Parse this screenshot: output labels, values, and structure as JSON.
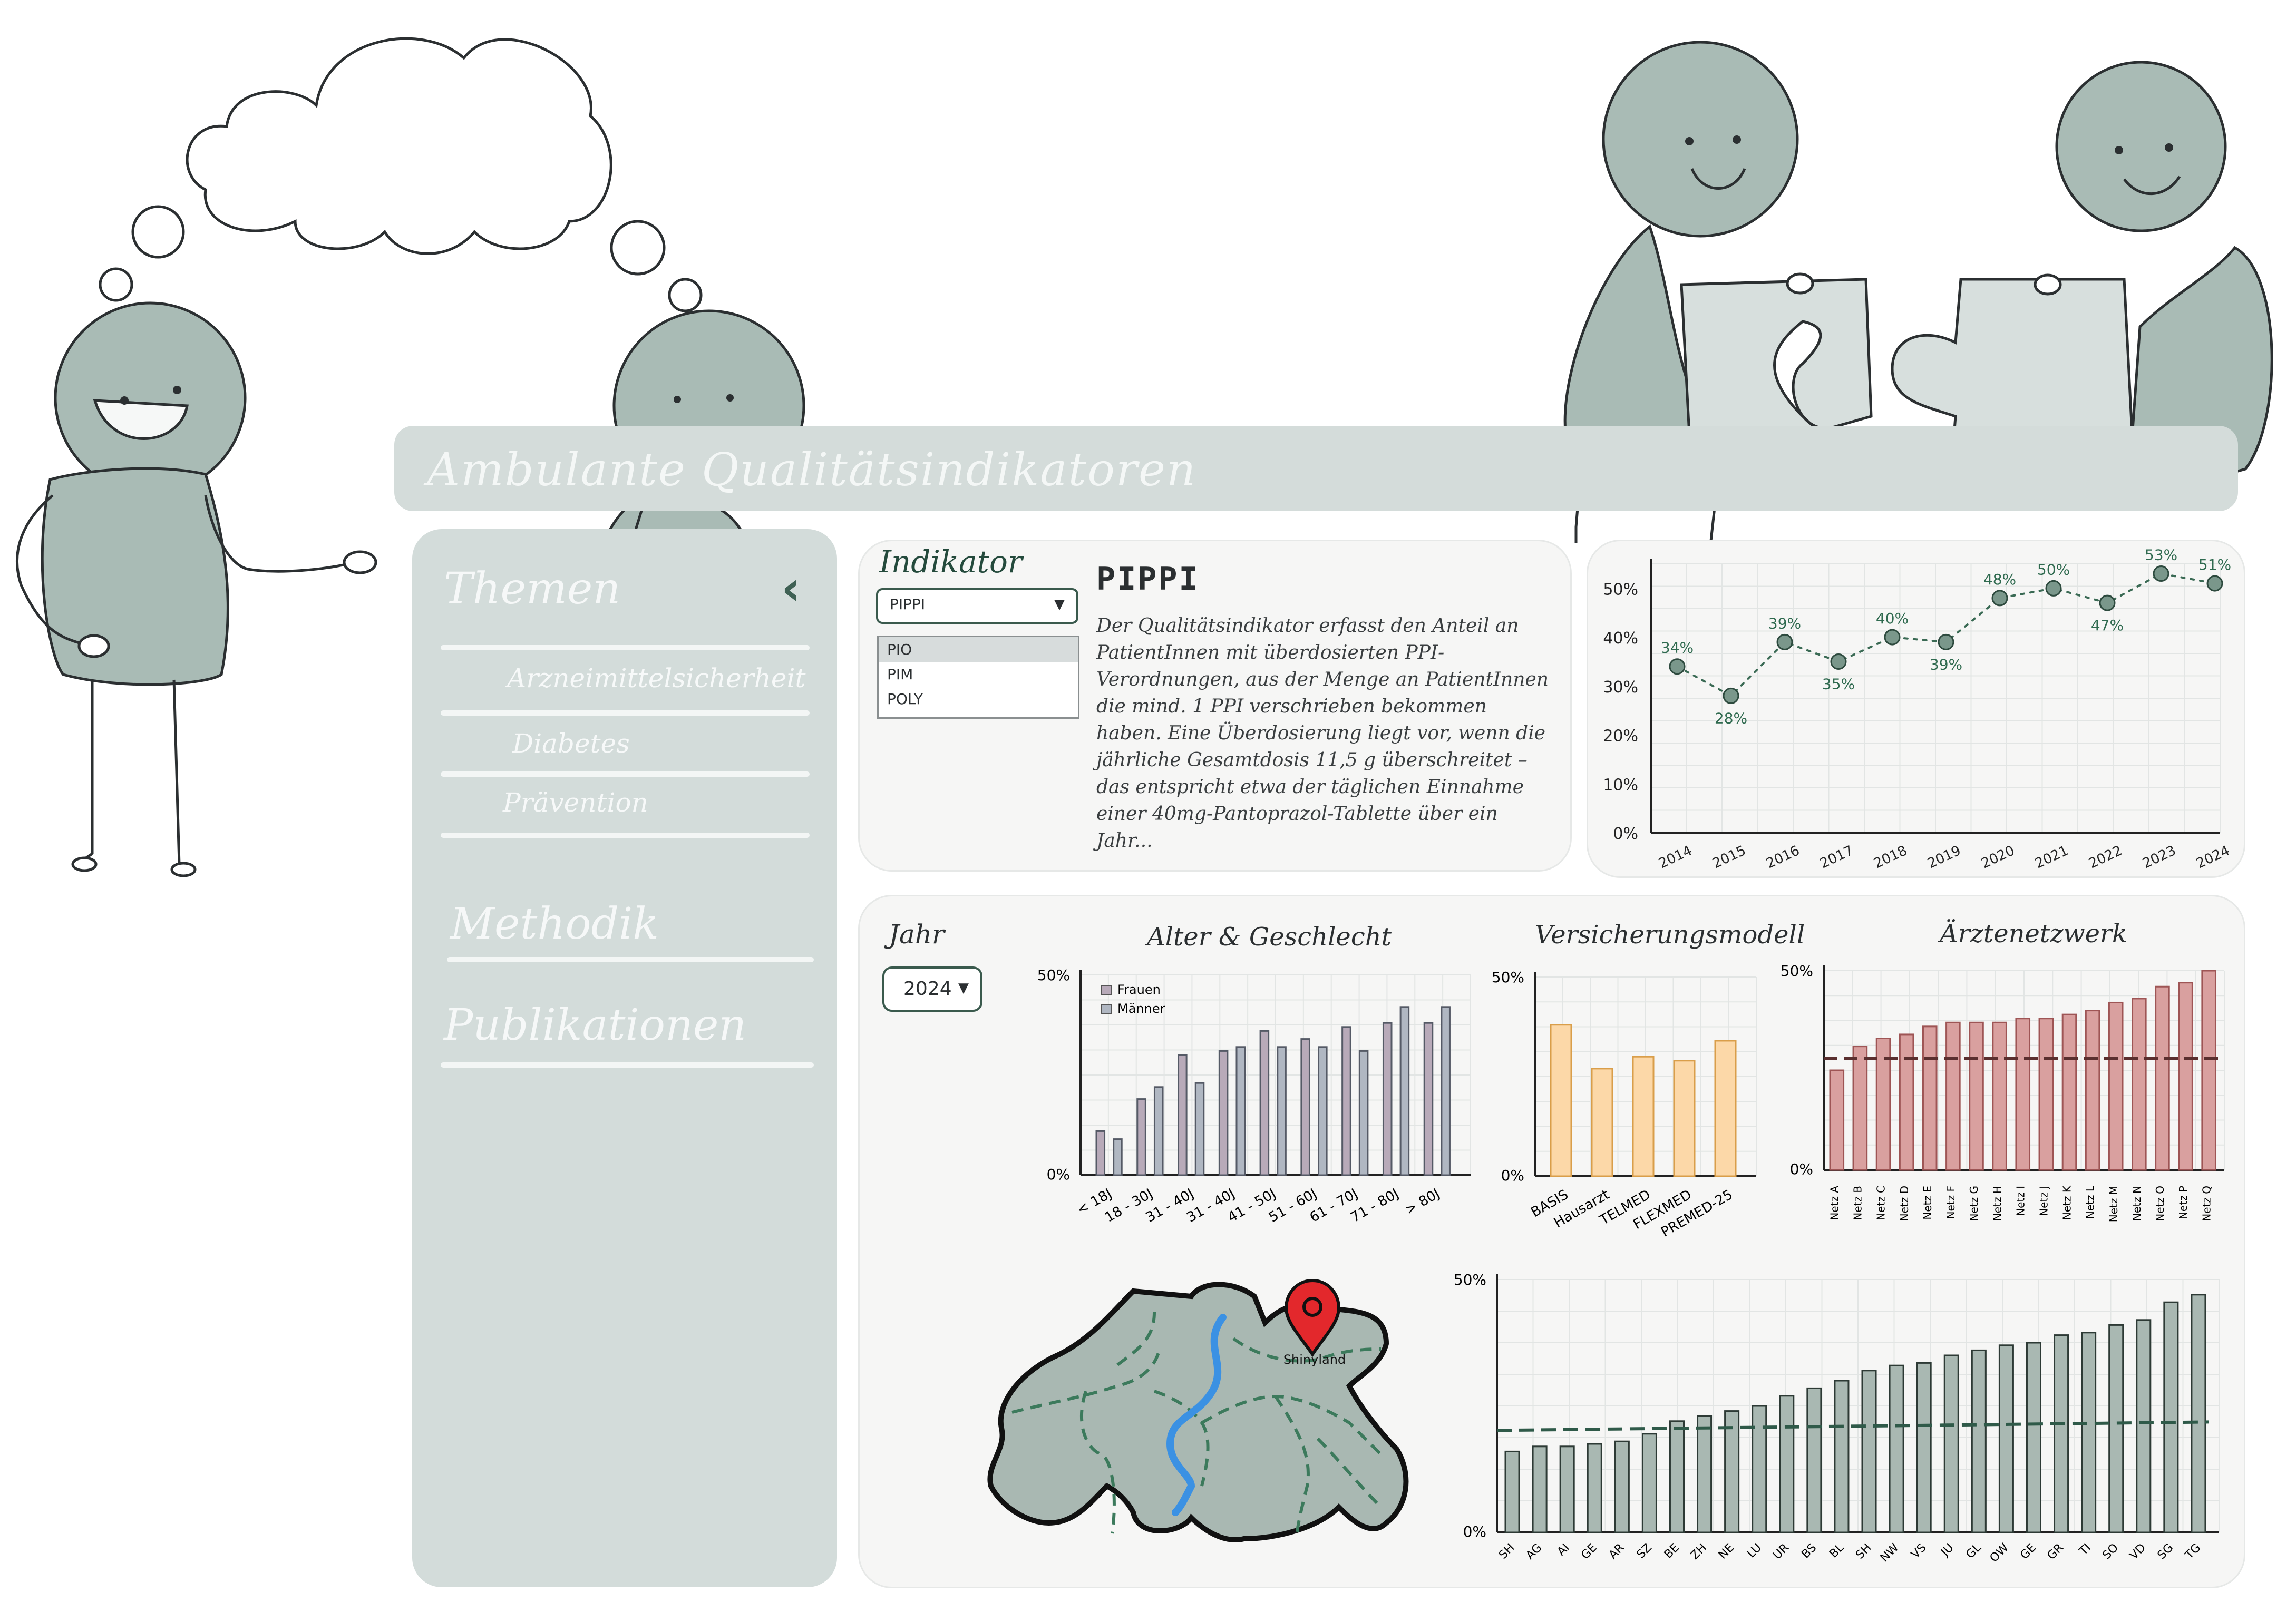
{
  "app_title": "Ambulante Qualitätsindikatoren",
  "sidebar": {
    "themen": "Themen",
    "items": [
      "Arzneimittelsicherheit",
      "Diabetes",
      "Prävention"
    ],
    "methodik": "Methodik",
    "publikationen": "Publikationen",
    "collapse_icon": "chevron-left-icon"
  },
  "indicator": {
    "label": "Indikator",
    "selected": "PIPPI",
    "options": [
      "PIO",
      "PIM",
      "POLY"
    ],
    "title": "PIPPI",
    "description": "Der Qualitätsindikator erfasst den Anteil an PatientInnen mit überdosierten PPI-Verordnungen, aus der Menge an PatientInnen die mind. 1 PPI verschrieben bekommen haben. Eine Überdosierung liegt vor, wenn die jährliche Gesamtdosis 11,5 g überschreitet – das entspricht etwa der täglichen Einnahme einer 40mg-Pantoprazol-Tablette über ein Jahr..."
  },
  "year": {
    "label": "Jahr",
    "selected": "2024"
  },
  "map": {
    "pin_label": "Shinyland"
  },
  "colors": {
    "accent": "#3a5a4d",
    "figure": "#a9bbb5",
    "female": "#b8aab9",
    "insurance": "#fcd8a8",
    "network": "#d9a09f",
    "canton": "#a9b8b2",
    "dash": "#3a5a4d"
  },
  "chart_data": [
    {
      "type": "line",
      "x": [
        "2014",
        "2015",
        "2016",
        "2017",
        "2018",
        "2019",
        "2020",
        "2021",
        "2022",
        "2023",
        "2024"
      ],
      "values": [
        34,
        28,
        39,
        35,
        40,
        39,
        48,
        50,
        47,
        53,
        51
      ],
      "labels": [
        "34%",
        "28%",
        "39%",
        "35%",
        "40%",
        "39%",
        "48%",
        "50%",
        "47%",
        "53%",
        "51%"
      ],
      "yticks": [
        "0%",
        "10%",
        "20%",
        "30%",
        "40%",
        "50%"
      ],
      "ylim": [
        0,
        55
      ]
    },
    {
      "type": "bar",
      "title": "Alter & Geschlecht",
      "categories": [
        "< 18J",
        "18 - 30J",
        "31 - 40J",
        "31 - 40J",
        "41 - 50J",
        "51 - 60J",
        "61 - 70J",
        "71 - 80J",
        "> 80J"
      ],
      "series": [
        {
          "name": "Frauen",
          "values": [
            11,
            19,
            30,
            31,
            36,
            34,
            37,
            38,
            38
          ]
        },
        {
          "name": "Männer",
          "values": [
            9,
            22,
            23,
            32,
            32,
            32,
            31,
            42,
            42
          ]
        }
      ],
      "yticks": [
        "0%",
        "50%"
      ],
      "ylim": [
        0,
        50
      ]
    },
    {
      "type": "bar",
      "title": "Versicherungsmodell",
      "categories": [
        "BASIS",
        "Hausarzt",
        "TELMED",
        "FLEXMED",
        "PREMED-25"
      ],
      "values": [
        38,
        27,
        30,
        29,
        34
      ],
      "yticks": [
        "0%",
        "50%"
      ],
      "ylim": [
        0,
        50
      ]
    },
    {
      "type": "bar",
      "title": "Ärztenetzwerk",
      "categories": [
        "Netz A",
        "Netz B",
        "Netz C",
        "Netz D",
        "Netz E",
        "Netz F",
        "Netz G",
        "Netz H",
        "Netz I",
        "Netz J",
        "Netz K",
        "Netz L",
        "Netz M",
        "Netz N",
        "Netz O",
        "Netz P",
        "Netz Q"
      ],
      "values": [
        25,
        31,
        33,
        34,
        36,
        37,
        37,
        37,
        38,
        38,
        39,
        40,
        42,
        43,
        46,
        47,
        50
      ],
      "reference_line": 28,
      "yticks": [
        "0%",
        "50%"
      ],
      "ylim": [
        0,
        50
      ]
    },
    {
      "type": "bar",
      "categories": [
        "SH",
        "AG",
        "AI",
        "GE",
        "AR",
        "SZ",
        "BE",
        "ZH",
        "NE",
        "LU",
        "UR",
        "BS",
        "BL",
        "SH",
        "NW",
        "VS",
        "JU",
        "GL",
        "OW",
        "GE",
        "GR",
        "TI",
        "SO",
        "VD",
        "SG",
        "TG"
      ],
      "values": [
        16,
        17,
        17,
        17.5,
        18,
        19.5,
        22,
        23,
        24,
        25,
        27,
        28.5,
        30,
        32,
        33,
        33.5,
        35,
        36,
        37,
        37.5,
        39,
        39.5,
        41,
        42,
        45.5,
        47
      ],
      "reference_line": 21,
      "yticks": [
        "0%",
        "50%"
      ],
      "ylim": [
        0,
        50
      ]
    }
  ]
}
